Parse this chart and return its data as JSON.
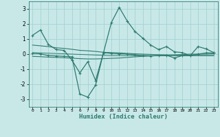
{
  "xlabel": "Humidex (Indice chaleur)",
  "bg_color": "#c8e8e8",
  "line_color": "#2d7a6e",
  "grid_color": "#9ecece",
  "xlim": [
    -0.5,
    23.5
  ],
  "ylim": [
    -3.5,
    3.5
  ],
  "xticks": [
    0,
    1,
    2,
    3,
    4,
    5,
    6,
    7,
    8,
    9,
    10,
    11,
    12,
    13,
    14,
    15,
    16,
    17,
    18,
    19,
    20,
    21,
    22,
    23
  ],
  "yticks": [
    -3,
    -2,
    -1,
    0,
    1,
    2,
    3
  ],
  "line1_x": [
    0,
    1,
    2,
    3,
    4,
    5,
    6,
    7,
    8,
    9,
    10,
    11,
    12,
    13,
    14,
    15,
    16,
    17,
    18,
    19,
    20,
    21,
    22,
    23
  ],
  "line1_y": [
    1.25,
    1.6,
    0.65,
    0.3,
    0.25,
    -0.4,
    -1.25,
    -0.5,
    -1.75,
    0.1,
    2.1,
    3.1,
    2.2,
    1.5,
    1.05,
    0.6,
    0.3,
    0.5,
    0.15,
    0.1,
    -0.1,
    0.5,
    0.35,
    0.1
  ],
  "line2_x": [
    0,
    1,
    2,
    3,
    4,
    5,
    6,
    7,
    8,
    9,
    10,
    11,
    12,
    13,
    14,
    15,
    16,
    17,
    18,
    19,
    20,
    21,
    22,
    23
  ],
  "line2_y": [
    0.6,
    0.55,
    0.5,
    0.42,
    0.38,
    0.32,
    0.25,
    0.22,
    0.18,
    0.12,
    0.1,
    0.08,
    0.05,
    0.02,
    0.0,
    -0.02,
    -0.04,
    -0.05,
    -0.07,
    -0.08,
    -0.09,
    -0.09,
    -0.1,
    -0.1
  ],
  "line3_x": [
    0,
    1,
    2,
    3,
    4,
    5,
    6,
    7,
    8,
    9,
    10,
    11,
    12,
    13,
    14,
    15,
    16,
    17,
    18,
    19,
    20,
    21,
    22,
    23
  ],
  "line3_y": [
    0.1,
    0.08,
    0.06,
    0.04,
    0.02,
    0.0,
    -0.02,
    -0.04,
    -0.06,
    -0.08,
    -0.1,
    -0.1,
    -0.1,
    -0.1,
    -0.1,
    -0.1,
    -0.1,
    -0.1,
    -0.1,
    -0.1,
    -0.1,
    -0.1,
    -0.1,
    -0.1
  ],
  "line4_x": [
    0,
    1,
    2,
    3,
    4,
    5,
    6,
    7,
    8,
    9,
    10,
    11,
    12,
    13,
    14,
    15,
    16,
    17,
    18,
    19,
    20,
    21,
    22,
    23
  ],
  "line4_y": [
    -0.15,
    -0.17,
    -0.2,
    -0.22,
    -0.24,
    -0.27,
    -0.3,
    -0.32,
    -0.32,
    -0.3,
    -0.28,
    -0.26,
    -0.22,
    -0.18,
    -0.15,
    -0.12,
    -0.1,
    -0.08,
    -0.05,
    -0.03,
    0.0,
    0.0,
    0.0,
    0.02
  ],
  "line5_x": [
    0,
    1,
    2,
    3,
    4,
    5,
    6,
    7,
    8,
    9,
    10,
    11,
    12,
    13,
    14,
    15,
    16,
    17,
    18,
    19,
    20,
    21,
    22,
    23
  ],
  "line5_y": [
    0.05,
    0.02,
    -0.1,
    -0.12,
    -0.15,
    -0.18,
    -2.65,
    -2.85,
    -2.05,
    0.1,
    0.05,
    0.02,
    0.0,
    -0.05,
    -0.1,
    -0.12,
    -0.1,
    -0.08,
    -0.25,
    -0.1,
    -0.08,
    0.0,
    0.08,
    0.08
  ]
}
